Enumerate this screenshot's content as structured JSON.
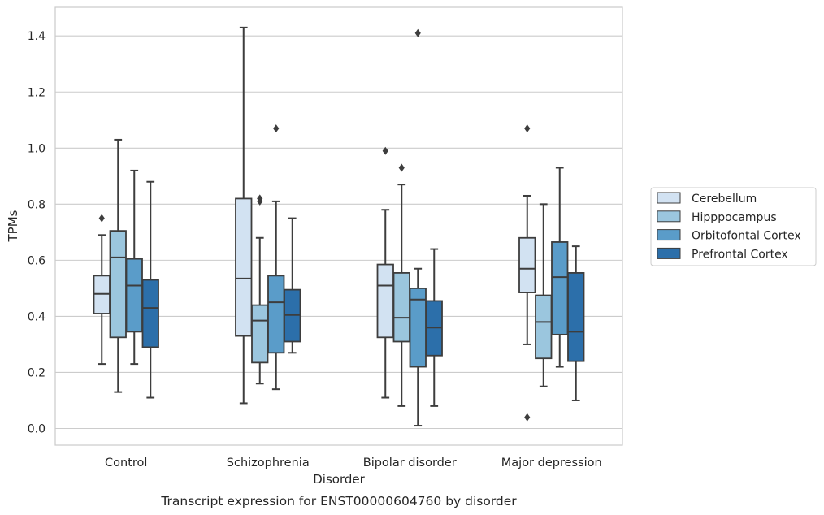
{
  "chart_data": {
    "type": "box",
    "title": "",
    "caption": "Transcript expression for ENST00000604760 by disorder",
    "xlabel": "Disorder",
    "ylabel": "TPMs",
    "ylim": [
      -0.06,
      1.5
    ],
    "yticks": [
      0.0,
      0.2,
      0.4,
      0.6,
      0.8,
      1.0,
      1.2,
      1.4
    ],
    "ytick_labels": [
      "0.0",
      "0.2",
      "0.4",
      "0.6",
      "0.8",
      "1.0",
      "1.2",
      "1.4"
    ],
    "grid": "horizontal",
    "legend_position": "right",
    "categories": [
      "Control",
      "Schizophrenia",
      "Bipolar disorder",
      "Major depression"
    ],
    "series": [
      {
        "name": "Cerebellum",
        "color": "#d2e2f2",
        "boxes": [
          {
            "whislo": 0.23,
            "q1": 0.41,
            "med": 0.48,
            "q3": 0.545,
            "whishi": 0.69,
            "fliers": [
              0.75
            ]
          },
          {
            "whislo": 0.09,
            "q1": 0.33,
            "med": 0.535,
            "q3": 0.82,
            "whishi": 1.43,
            "fliers": []
          },
          {
            "whislo": 0.11,
            "q1": 0.325,
            "med": 0.51,
            "q3": 0.585,
            "whishi": 0.78,
            "fliers": [
              0.99
            ]
          },
          {
            "whislo": 0.3,
            "q1": 0.485,
            "med": 0.57,
            "q3": 0.68,
            "whishi": 0.83,
            "fliers": [
              1.07,
              0.04
            ]
          }
        ]
      },
      {
        "name": "Hipppocampus",
        "color": "#9bc6de",
        "boxes": [
          {
            "whislo": 0.13,
            "q1": 0.325,
            "med": 0.61,
            "q3": 0.705,
            "whishi": 1.03,
            "fliers": []
          },
          {
            "whislo": 0.16,
            "q1": 0.235,
            "med": 0.385,
            "q3": 0.44,
            "whishi": 0.68,
            "fliers": [
              0.81,
              0.82
            ]
          },
          {
            "whislo": 0.08,
            "q1": 0.31,
            "med": 0.395,
            "q3": 0.555,
            "whishi": 0.87,
            "fliers": [
              0.93
            ]
          },
          {
            "whislo": 0.15,
            "q1": 0.25,
            "med": 0.38,
            "q3": 0.475,
            "whishi": 0.8,
            "fliers": []
          }
        ]
      },
      {
        "name": "Orbitofontal Cortex",
        "color": "#5a9cc9",
        "boxes": [
          {
            "whislo": 0.23,
            "q1": 0.345,
            "med": 0.51,
            "q3": 0.605,
            "whishi": 0.92,
            "fliers": []
          },
          {
            "whislo": 0.14,
            "q1": 0.27,
            "med": 0.45,
            "q3": 0.545,
            "whishi": 0.81,
            "fliers": [
              1.07
            ]
          },
          {
            "whislo": 0.01,
            "q1": 0.22,
            "med": 0.46,
            "q3": 0.5,
            "whishi": 0.57,
            "fliers": [
              1.41
            ]
          },
          {
            "whislo": 0.22,
            "q1": 0.335,
            "med": 0.54,
            "q3": 0.665,
            "whishi": 0.93,
            "fliers": []
          }
        ]
      },
      {
        "name": "Prefrontal Cortex",
        "color": "#2c6faa",
        "boxes": [
          {
            "whislo": 0.11,
            "q1": 0.29,
            "med": 0.43,
            "q3": 0.53,
            "whishi": 0.88,
            "fliers": []
          },
          {
            "whislo": 0.27,
            "q1": 0.31,
            "med": 0.405,
            "q3": 0.495,
            "whishi": 0.75,
            "fliers": []
          },
          {
            "whislo": 0.08,
            "q1": 0.26,
            "med": 0.36,
            "q3": 0.455,
            "whishi": 0.64,
            "fliers": []
          },
          {
            "whislo": 0.1,
            "q1": 0.24,
            "med": 0.345,
            "q3": 0.555,
            "whishi": 0.65,
            "fliers": []
          }
        ]
      }
    ]
  }
}
